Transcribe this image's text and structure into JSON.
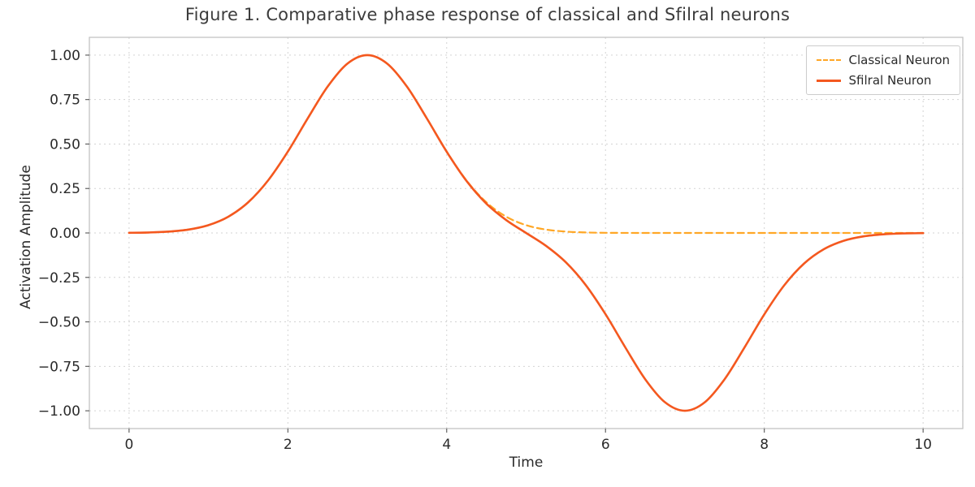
{
  "figure": {
    "title": "Figure 1. Comparative phase response of classical and Sfilral neurons",
    "xlabel": "Time",
    "ylabel": "Activation Amplitude"
  },
  "chart_data": {
    "type": "line",
    "title": "Figure 1. Comparative phase response of classical and Sfilral neurons",
    "xlabel": "Time",
    "ylabel": "Activation Amplitude",
    "xlim": [
      -0.5,
      10.5
    ],
    "ylim": [
      -1.1,
      1.1
    ],
    "xticks": [
      0,
      2,
      4,
      6,
      8,
      10
    ],
    "xtick_labels": [
      "0",
      "2",
      "4",
      "6",
      "8",
      "10"
    ],
    "yticks": [
      -1.0,
      -0.75,
      -0.5,
      -0.25,
      0.0,
      0.25,
      0.5,
      0.75,
      1.0
    ],
    "ytick_labels": [
      "−1.00",
      "−0.75",
      "−0.50",
      "−0.25",
      "0.00",
      "0.25",
      "0.50",
      "0.75",
      "1.00"
    ],
    "grid": true,
    "legend_position": "upper right",
    "x": [
      0,
      0.25,
      0.5,
      0.75,
      1,
      1.25,
      1.5,
      1.75,
      2,
      2.25,
      2.5,
      2.75,
      3,
      3.25,
      3.5,
      3.75,
      4,
      4.25,
      4.5,
      4.75,
      5,
      5.25,
      5.5,
      5.75,
      6,
      6.25,
      6.5,
      6.75,
      7,
      7.25,
      7.5,
      7.75,
      8,
      8.25,
      8.5,
      8.75,
      9,
      9.25,
      9.5,
      9.75,
      10
    ],
    "series": [
      {
        "name": "Classical Neuron",
        "color": "#ffa726",
        "style": "dashed",
        "line_width": 2.2,
        "values": [
          0.0009,
          0.0027,
          0.0076,
          0.0191,
          0.0439,
          0.0914,
          0.1724,
          0.295,
          0.4578,
          0.6444,
          0.8226,
          0.9524,
          1.0,
          0.9524,
          0.8226,
          0.6444,
          0.4578,
          0.295,
          0.1724,
          0.0914,
          0.0439,
          0.0191,
          0.0076,
          0.0027,
          0.0009,
          0.0003,
          0.0001,
          0,
          0,
          0,
          0,
          0,
          0,
          0,
          0,
          0,
          0,
          0,
          0,
          0,
          0
        ]
      },
      {
        "name": "Sfilral Neuron",
        "color": "#f4581f",
        "style": "solid",
        "line_width": 2.6,
        "values": [
          0.0009,
          0.0027,
          0.0076,
          0.0191,
          0.0439,
          0.0914,
          0.1724,
          0.295,
          0.4578,
          0.6444,
          0.8226,
          0.9524,
          1.0,
          0.9524,
          0.8226,
          0.6441,
          0.4569,
          0.2923,
          0.1648,
          0.0723,
          0.0,
          -0.0723,
          -0.1648,
          -0.2923,
          -0.4569,
          -0.6441,
          -0.8225,
          -0.9524,
          -1.0,
          -0.9524,
          -0.8226,
          -0.6444,
          -0.4578,
          -0.295,
          -0.1724,
          -0.0914,
          -0.0439,
          -0.0191,
          -0.0076,
          -0.0027,
          -0.0009
        ]
      }
    ]
  }
}
